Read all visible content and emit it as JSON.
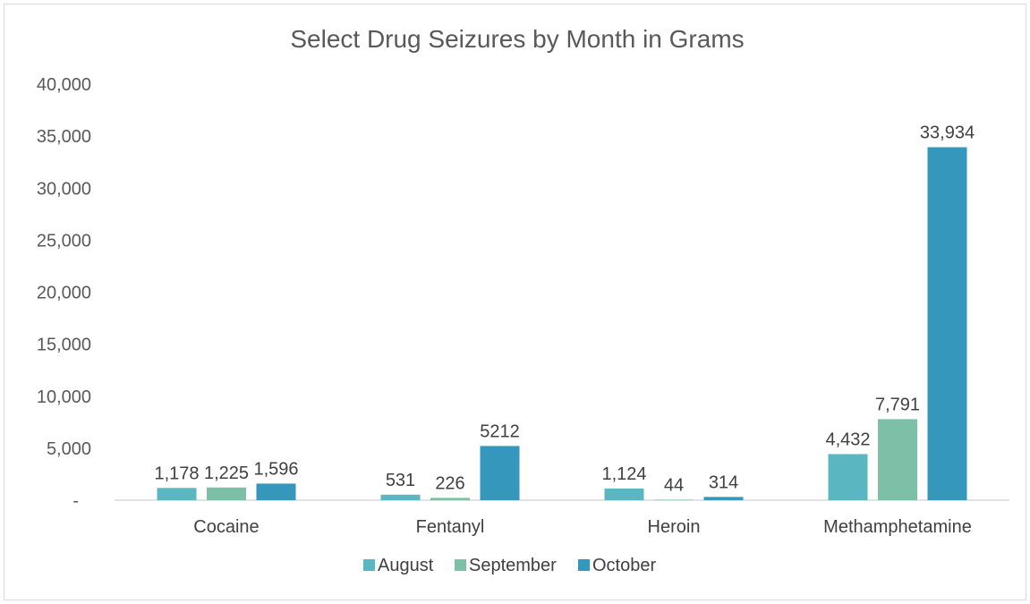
{
  "chart_data": {
    "type": "bar",
    "title": "Select Drug Seizures by Month in Grams",
    "categories": [
      "Cocaine",
      "Fentanyl",
      "Heroin",
      "Methamphetamine"
    ],
    "series": [
      {
        "name": "August",
        "color": "#5ab7c2",
        "values": [
          1178,
          531,
          1124,
          4432
        ],
        "labels": [
          "1,178",
          "531",
          "1,124",
          "4,432"
        ]
      },
      {
        "name": "September",
        "color": "#7cc0a7",
        "values": [
          1225,
          226,
          44,
          7791
        ],
        "labels": [
          "1,225",
          "226",
          "44",
          "7,791"
        ]
      },
      {
        "name": "October",
        "color": "#3497bb",
        "values": [
          1596,
          5212,
          314,
          33934
        ],
        "labels": [
          "1,596",
          "5212",
          "314",
          "33,934"
        ]
      }
    ],
    "ylim": [
      0,
      40000
    ],
    "yticks": [
      0,
      5000,
      10000,
      15000,
      20000,
      25000,
      30000,
      35000,
      40000
    ],
    "ytick_labels": [
      "-",
      "5,000",
      "10,000",
      "15,000",
      "20,000",
      "25,000",
      "30,000",
      "35,000",
      "40,000"
    ],
    "xlabel": "",
    "ylabel": "",
    "grid": false,
    "legend_position": "bottom"
  }
}
